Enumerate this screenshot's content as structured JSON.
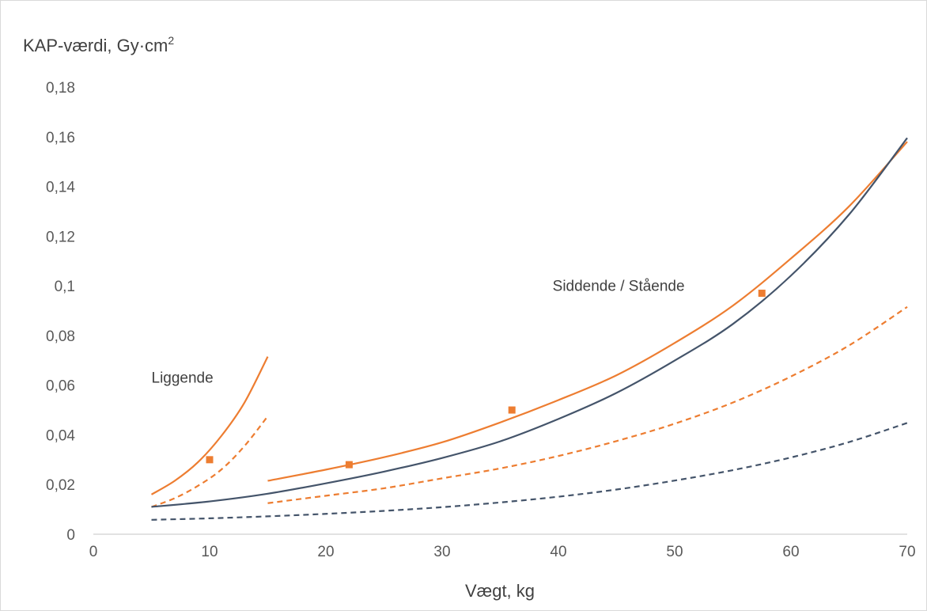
{
  "chart_data": {
    "type": "line",
    "ylabel": "KAP-værdi, Gy·cm",
    "ylabel_sup": "2",
    "xlabel": "Vægt, kg",
    "xlim": [
      0,
      70
    ],
    "ylim": [
      0,
      0.18
    ],
    "x_ticks": [
      0,
      10,
      20,
      30,
      40,
      50,
      60,
      70
    ],
    "x_tick_labels": [
      "0",
      "10",
      "20",
      "30",
      "40",
      "50",
      "60",
      "70"
    ],
    "y_ticks": [
      0,
      0.02,
      0.04,
      0.06,
      0.08,
      0.1,
      0.12,
      0.14,
      0.16,
      0.18
    ],
    "y_tick_labels": [
      "0",
      "0,02",
      "0,04",
      "0,06",
      "0,08",
      "0,1",
      "0,12",
      "0,14",
      "0,16",
      "0,18"
    ],
    "grid": false,
    "legend": "none",
    "colors": {
      "orange": "#ED7D31",
      "navy": "#44546A",
      "axis": "#d9d9d9",
      "text": "#595959"
    },
    "annotations": [
      {
        "text": "Liggende",
        "x": 5,
        "y": 0.061
      },
      {
        "text": "Siddende / Stående",
        "x": 39.5,
        "y": 0.098
      }
    ],
    "series": [
      {
        "color": "#ED7D31",
        "dash": "solid",
        "x": [
          5,
          7,
          9,
          11,
          13,
          15
        ],
        "y": [
          0.016,
          0.0215,
          0.029,
          0.0395,
          0.053,
          0.0715
        ]
      },
      {
        "color": "#ED7D31",
        "dash": "dashed",
        "x": [
          5,
          7,
          9,
          11,
          13,
          15
        ],
        "y": [
          0.011,
          0.0145,
          0.0195,
          0.026,
          0.0355,
          0.0475
        ]
      },
      {
        "color": "#ED7D31",
        "dash": "solid",
        "x": [
          15,
          20,
          25,
          30,
          35,
          40,
          45,
          50,
          55,
          60,
          65,
          70
        ],
        "y": [
          0.0215,
          0.026,
          0.031,
          0.037,
          0.045,
          0.054,
          0.064,
          0.077,
          0.092,
          0.111,
          0.132,
          0.158
        ]
      },
      {
        "color": "#ED7D31",
        "dash": "dashed",
        "x": [
          15,
          20,
          25,
          30,
          35,
          40,
          45,
          50,
          55,
          60,
          65,
          70
        ],
        "y": [
          0.0125,
          0.0155,
          0.0185,
          0.0225,
          0.0265,
          0.0315,
          0.0375,
          0.0445,
          0.053,
          0.0635,
          0.076,
          0.0915
        ]
      },
      {
        "color": "#44546A",
        "dash": "solid",
        "x": [
          5,
          10,
          15,
          20,
          25,
          30,
          35,
          40,
          45,
          50,
          55,
          60,
          65,
          70
        ],
        "y": [
          0.011,
          0.0132,
          0.0163,
          0.0205,
          0.0252,
          0.0307,
          0.0374,
          0.0464,
          0.0569,
          0.0699,
          0.0846,
          0.1041,
          0.1287,
          0.1595
        ]
      },
      {
        "color": "#44546A",
        "dash": "dashed",
        "x": [
          5,
          10,
          15,
          20,
          25,
          30,
          35,
          40,
          45,
          50,
          55,
          60,
          65,
          70
        ],
        "y": [
          0.0058,
          0.0064,
          0.0072,
          0.0082,
          0.0094,
          0.0109,
          0.0128,
          0.0151,
          0.018,
          0.0216,
          0.0258,
          0.0309,
          0.0371,
          0.0448
        ]
      }
    ],
    "points": {
      "color": "#ED7D31",
      "x": [
        10,
        22,
        36,
        57.5
      ],
      "y": [
        0.03,
        0.028,
        0.05,
        0.097
      ]
    }
  }
}
